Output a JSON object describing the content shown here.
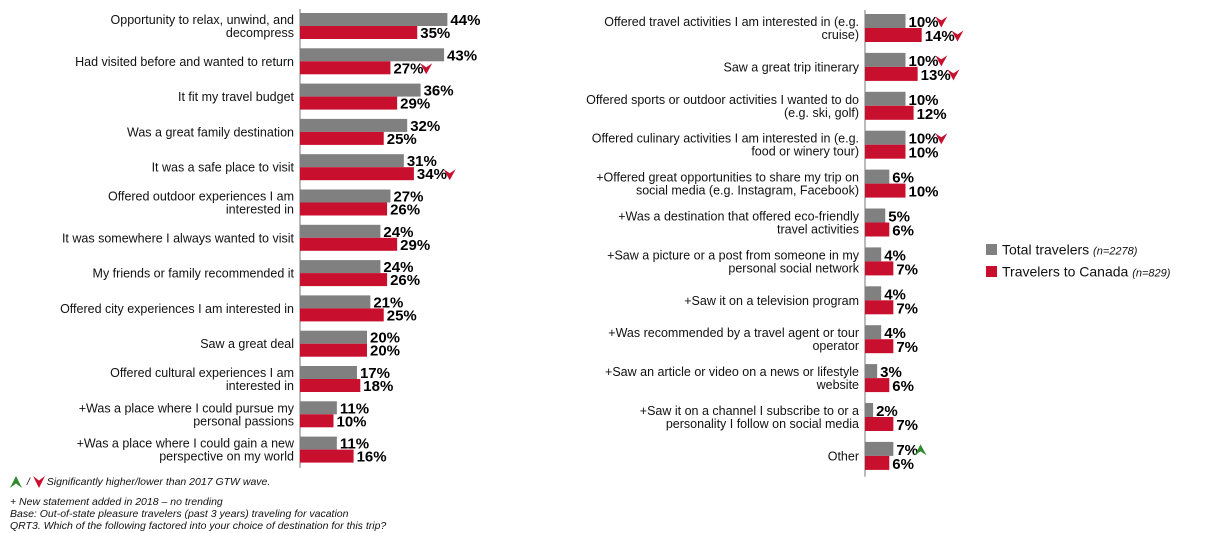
{
  "chart_data": [
    {
      "type": "bar",
      "orientation": "horizontal",
      "categories": [
        [
          "Opportunity to relax, unwind, and",
          "decompress"
        ],
        [
          "Had visited before and wanted to return"
        ],
        [
          "It fit my travel budget"
        ],
        [
          "Was a great family destination"
        ],
        [
          "It was a safe place to visit"
        ],
        [
          "Offered outdoor experiences I am",
          "interested in"
        ],
        [
          "It was somewhere I always wanted to visit"
        ],
        [
          "My friends or family recommended it"
        ],
        [
          "Offered city experiences I am interested in"
        ],
        [
          "Saw a great deal"
        ],
        [
          "Offered cultural experiences I am",
          "interested in"
        ],
        [
          "+Was a place where I could pursue my",
          "personal passions"
        ],
        [
          "+Was a place where I could gain a new",
          "perspective on my world"
        ]
      ],
      "series": [
        {
          "name": "Total travelers",
          "color": "#808080",
          "values": [
            44,
            43,
            36,
            32,
            31,
            27,
            24,
            24,
            21,
            20,
            17,
            11,
            11
          ],
          "labels": [
            "44%",
            "43%",
            "36%",
            "32%",
            "31%",
            "27%",
            "24%",
            "24%",
            "21%",
            "20%",
            "17%",
            "11%",
            "11%"
          ],
          "significance": [
            "",
            "",
            "",
            "",
            "",
            "",
            "",
            "",
            "",
            "",
            "",
            "",
            ""
          ]
        },
        {
          "name": "Travelers to Canada",
          "color": "#C8102E",
          "values": [
            35,
            27,
            29,
            25,
            34,
            26,
            29,
            26,
            25,
            20,
            18,
            10,
            16
          ],
          "labels": [
            "35%",
            "27%",
            "29%",
            "25%",
            "34%",
            "26%",
            "29%",
            "26%",
            "25%",
            "20%",
            "18%",
            "10%",
            "16%"
          ],
          "significance": [
            "",
            "lower",
            "",
            "",
            "lower",
            "",
            "",
            "",
            "",
            "",
            "",
            "",
            ""
          ]
        }
      ],
      "xlim": [
        0,
        100
      ],
      "grid": false
    },
    {
      "type": "bar",
      "orientation": "horizontal",
      "categories": [
        [
          "Offered travel activities I am interested in (e.g.",
          "cruise)"
        ],
        [
          "Saw a great trip itinerary"
        ],
        [
          "Offered sports or outdoor activities I wanted to do",
          "(e.g. ski, golf)"
        ],
        [
          "Offered culinary activities I am interested in (e.g.",
          "food or winery tour)"
        ],
        [
          "+Offered great opportunities to share my trip on",
          "social media (e.g. Instagram, Facebook)"
        ],
        [
          "+Was a destination that offered eco-friendly",
          "travel activities"
        ],
        [
          "+Saw a picture or a post from someone in my",
          "personal social network"
        ],
        [
          "+Saw it on a television program"
        ],
        [
          "+Was recommended by a travel agent or tour",
          "operator"
        ],
        [
          "+Saw an article or video on a news or lifestyle",
          "website"
        ],
        [
          "+Saw it on a channel I subscribe to or a",
          "personality I follow on social media"
        ],
        [
          "Other"
        ]
      ],
      "series": [
        {
          "name": "Total travelers",
          "color": "#808080",
          "values": [
            10,
            10,
            10,
            10,
            6,
            5,
            4,
            4,
            4,
            3,
            2,
            7
          ],
          "labels": [
            "10%",
            "10%",
            "10%",
            "10%",
            "6%",
            "5%",
            "4%",
            "4%",
            "4%",
            "3%",
            "2%",
            "7%"
          ],
          "significance": [
            "lower",
            "lower",
            "",
            "lower",
            "",
            "",
            "",
            "",
            "",
            "",
            "",
            "higher"
          ]
        },
        {
          "name": "Travelers to Canada",
          "color": "#C8102E",
          "values": [
            14,
            13,
            12,
            10,
            10,
            6,
            7,
            7,
            7,
            6,
            7,
            6
          ],
          "labels": [
            "14%",
            "13%",
            "12%",
            "10%",
            "10%",
            "6%",
            "7%",
            "7%",
            "7%",
            "6%",
            "7%",
            "6%"
          ],
          "significance": [
            "lower",
            "lower",
            "",
            "",
            "",
            "",
            "",
            "",
            "",
            "",
            "",
            ""
          ]
        }
      ],
      "xlim": [
        0,
        100
      ],
      "grid": false
    }
  ],
  "legend": {
    "placement": "right",
    "items": [
      {
        "label": "Total travelers",
        "n": "(n=2278)",
        "color": "#808080"
      },
      {
        "label": "Travelers to Canada",
        "n": "(n=829)",
        "color": "#C8102E"
      }
    ]
  },
  "colors": {
    "higher_arrow": "#2E8B2E",
    "lower_arrow": "#C8102E"
  },
  "footnotes": {
    "significance": "Significantly higher/lower than 2017 GTW wave.",
    "new_statement": "+ New statement added in 2018 – no trending",
    "base": "Base: Out-of-state pleasure travelers (past 3 years) traveling for vacation",
    "question": "QRT3. Which of the following factored into your choice of destination for this trip?"
  }
}
